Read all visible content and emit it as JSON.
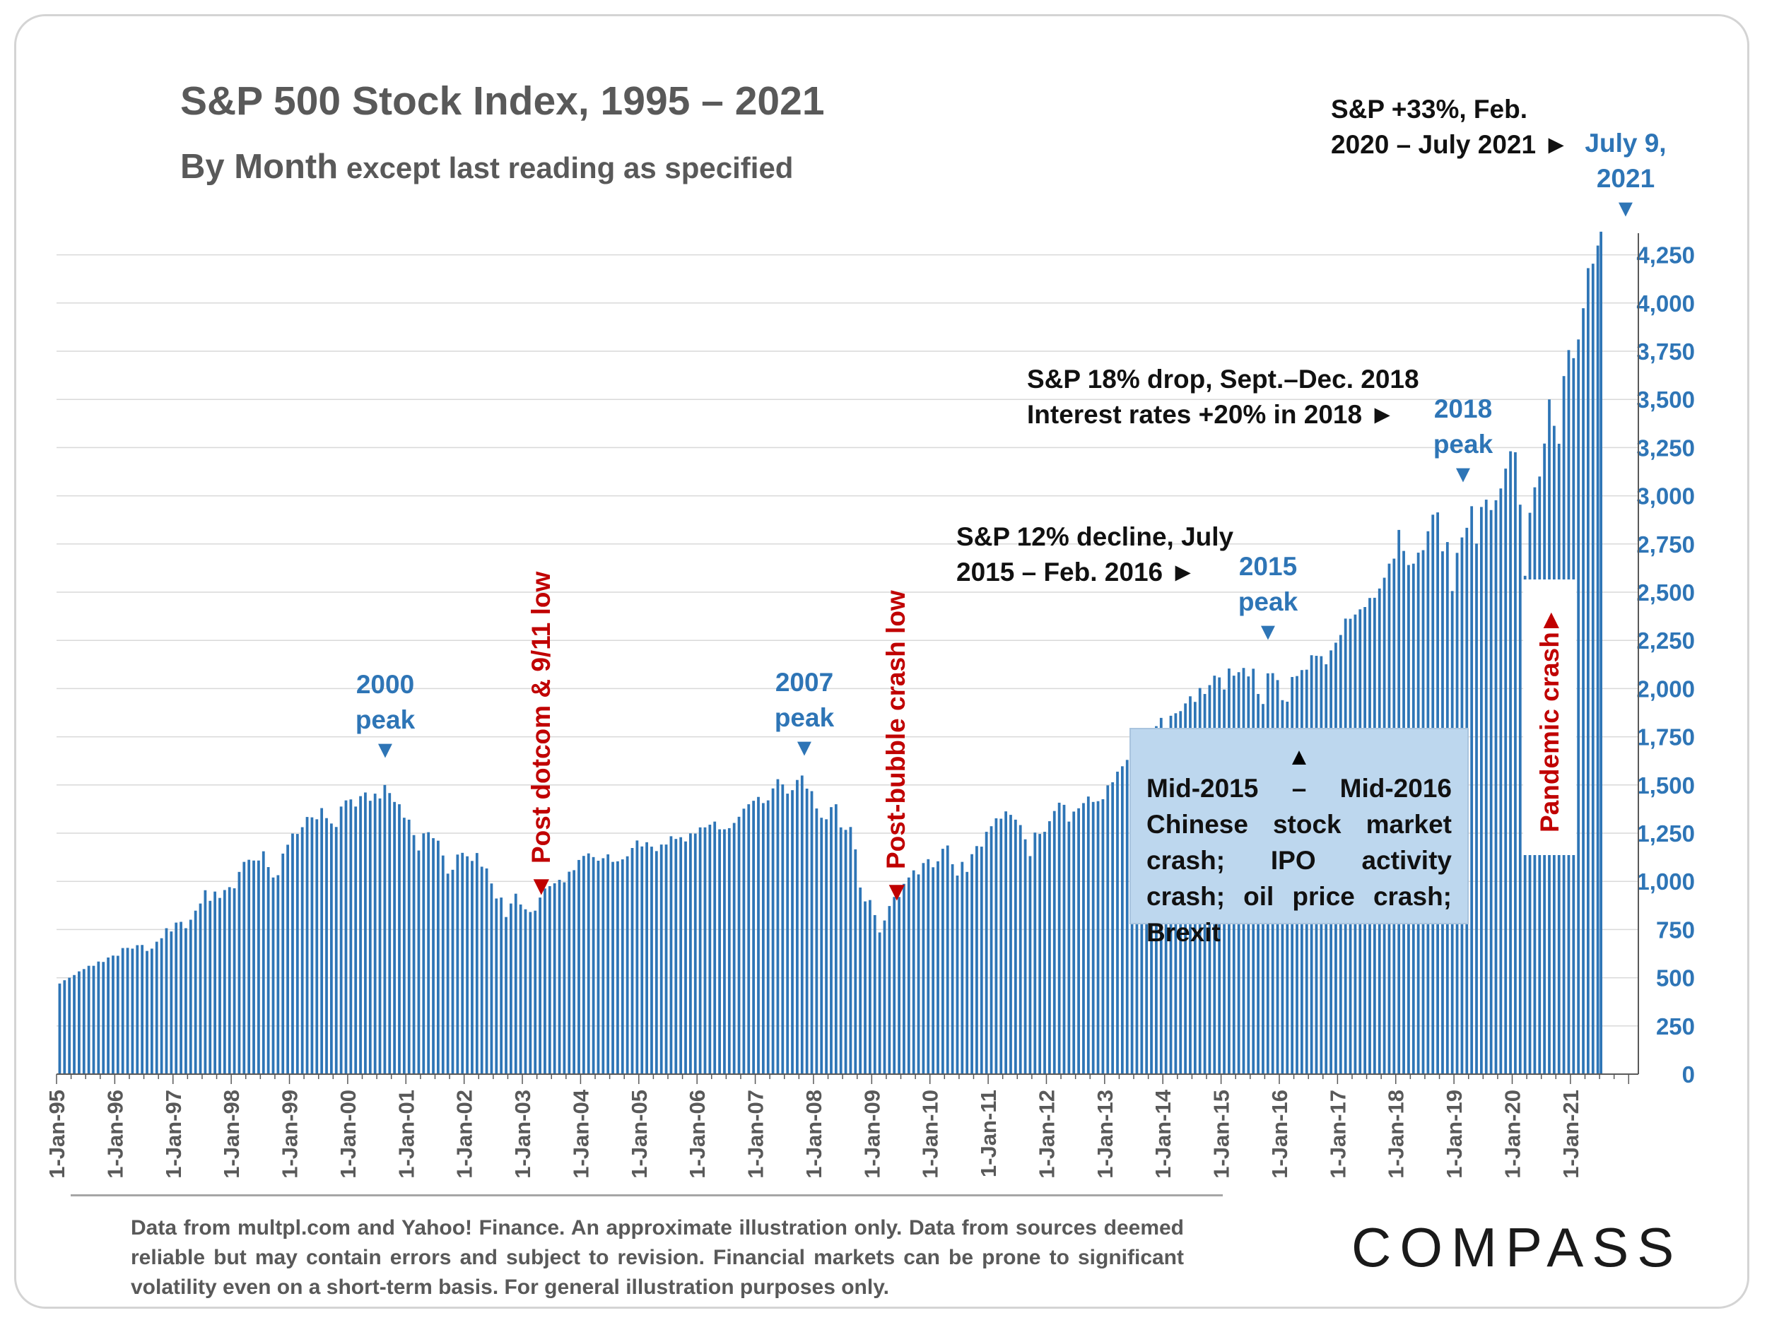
{
  "header": {
    "title": "S&P 500 Stock Index, 1995 – 2021",
    "subtitle_big": "By Month",
    "subtitle_small": " except last reading as specified"
  },
  "annotations": {
    "covid_rise": [
      "S&P +33%, Feb.",
      "2020 – July 2021 ►"
    ],
    "last_reading": [
      "July 9,",
      "2021"
    ],
    "drop_2018": [
      "S&P 18% drop, Sept.–Dec. 2018",
      "Interest rates +20% in 2018 ►"
    ],
    "peak_2018": [
      "2018",
      "peak"
    ],
    "decline_2015": [
      "S&P 12% decline, July",
      "2015 – Feb. 2016 ►"
    ],
    "peak_2015": [
      "2015",
      "peak"
    ],
    "peak_2000": [
      "2000",
      "peak"
    ],
    "peak_2007": [
      "2007",
      "peak"
    ],
    "low_2003": "Post dotcom & 9/11 low",
    "low_2009": "Post-bubble crash low",
    "pandemic": "Pandemic crash",
    "down_triangle": "▼",
    "up_triangle": "▲",
    "info_arrow": "▲",
    "info_text": "Mid-2015 – Mid-2016 Chinese stock market crash; IPO activity crash; oil price crash; Brexit"
  },
  "footer": {
    "disclaimer": "Data from multpl.com and Yahoo! Finance. An approximate illustration only. Data from sources deemed reliable but may contain errors and subject to revision. Financial markets can be prone to significant volatility even on a short-term basis. For general illustration purposes only.",
    "logo": "COMPASS"
  },
  "colors": {
    "bar": "#2e75b6",
    "accent_blue": "#2e75b6",
    "accent_red": "#c00000",
    "info_box": "#bdd7ee",
    "grid": "#d9d9d9"
  },
  "chart_data": {
    "type": "bar",
    "title": "S&P 500 Stock Index, 1995 – 2021",
    "ylim": [
      0,
      4250
    ],
    "yticks": [
      0,
      250,
      500,
      750,
      1000,
      1250,
      1500,
      1750,
      2000,
      2250,
      2500,
      2750,
      3000,
      3250,
      3500,
      3750,
      4000,
      4250
    ],
    "ytick_labels": [
      "0",
      "250",
      "500",
      "750",
      "1,000",
      "1,250",
      "1,500",
      "1,750",
      "2,000",
      "2,250",
      "2,500",
      "2,750",
      "3,000",
      "3,250",
      "3,500",
      "3,750",
      "4,000",
      "4,250"
    ],
    "xtick_labels": [
      "1-Jan-95",
      "1-Jan-96",
      "1-Jan-97",
      "1-Jan-98",
      "1-Jan-99",
      "1-Jan-00",
      "1-Jan-01",
      "1-Jan-02",
      "1-Jan-03",
      "1-Jan-04",
      "1-Jan-05",
      "1-Jan-06",
      "1-Jan-07",
      "1-Jan-08",
      "1-Jan-09",
      "1-Jan-10",
      "1-Jan-11",
      "1-Jan-12",
      "1-Jan-13",
      "1-Jan-14",
      "1-Jan-15",
      "1-Jan-16",
      "1-Jan-17",
      "1-Jan-18",
      "1-Jan-19",
      "1-Jan-20",
      "1-Jan-21"
    ],
    "grid": true,
    "series": [
      {
        "values": [
          470,
          487,
          500,
          514,
          533,
          545,
          562,
          562,
          584,
          582,
          605,
          615,
          614,
          654,
          655,
          651,
          669,
          670,
          639,
          651,
          687,
          705,
          757,
          740,
          786,
          790,
          757,
          801,
          848,
          885,
          954,
          899,
          947,
          914,
          955,
          970,
          964,
          1049,
          1101,
          1112,
          1108,
          1108,
          1156,
          1074,
          1020,
          1032,
          1144,
          1190,
          1248,
          1246,
          1281,
          1334,
          1332,
          1322,
          1380,
          1328,
          1300,
          1282,
          1388,
          1420,
          1425,
          1388,
          1442,
          1461,
          1418,
          1455,
          1430,
          1500,
          1458,
          1412,
          1400,
          1330,
          1320,
          1240,
          1160,
          1249,
          1255,
          1224,
          1211,
          1134,
          1040,
          1060,
          1139,
          1148,
          1130,
          1106,
          1147,
          1076,
          1067,
          989,
          911,
          916,
          815,
          885,
          936,
          880,
          855,
          841,
          848,
          916,
          963,
          975,
          990,
          1008,
          995,
          1050,
          1058,
          1111,
          1132,
          1145,
          1126,
          1107,
          1120,
          1140,
          1101,
          1104,
          1114,
          1130,
          1173,
          1212,
          1181,
          1203,
          1180,
          1157,
          1191,
          1191,
          1234,
          1220,
          1229,
          1207,
          1249,
          1248,
          1280,
          1280,
          1294,
          1310,
          1270,
          1270,
          1276,
          1303,
          1335,
          1377,
          1400,
          1418,
          1438,
          1406,
          1420,
          1482,
          1530,
          1503,
          1455,
          1473,
          1526,
          1549,
          1481,
          1468,
          1378,
          1330,
          1322,
          1385,
          1400,
          1280,
          1267,
          1282,
          1166,
          968,
          896,
          903,
          825,
          735,
          797,
          872,
          919,
          919,
          987,
          1020,
          1057,
          1036,
          1095,
          1115,
          1073,
          1104,
          1169,
          1186,
          1089,
          1030,
          1101,
          1049,
          1141,
          1183,
          1180,
          1257,
          1286,
          1327,
          1325,
          1363,
          1345,
          1320,
          1292,
          1218,
          1131,
          1253,
          1246,
          1257,
          1312,
          1365,
          1408,
          1397,
          1310,
          1362,
          1379,
          1406,
          1440,
          1412,
          1416,
          1426,
          1498,
          1514,
          1569,
          1597,
          1630,
          1606,
          1685,
          1632,
          1681,
          1756,
          1805,
          1848,
          1782,
          1859,
          1872,
          1883,
          1923,
          1960,
          1931,
          2003,
          1972,
          2018,
          2067,
          2058,
          1995,
          2104,
          2067,
          2085,
          2107,
          2063,
          2103,
          1972,
          1920,
          2079,
          2080,
          2044,
          1940,
          1932,
          2060,
          2065,
          2096,
          2098,
          2173,
          2170,
          2168,
          2126,
          2198,
          2238,
          2278,
          2363,
          2362,
          2384,
          2411,
          2423,
          2470,
          2471,
          2519,
          2575,
          2648,
          2674,
          2823,
          2714,
          2641,
          2648,
          2705,
          2718,
          2816,
          2902,
          2914,
          2712,
          2760,
          2506,
          2704,
          2784,
          2834,
          2946,
          2752,
          2942,
          2980,
          2926,
          2977,
          3038,
          3141,
          3231,
          3226,
          2954,
          2585,
          2912,
          3044,
          3100,
          3271,
          3500,
          3363,
          3270,
          3621,
          3756,
          3714,
          3811,
          3973,
          4181,
          4204,
          4298,
          4370
        ]
      }
    ]
  }
}
